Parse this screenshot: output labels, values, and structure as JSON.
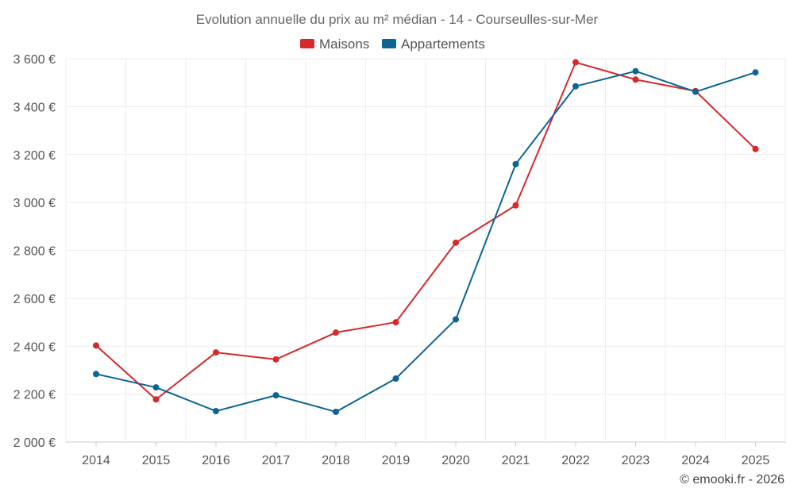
{
  "chart_data": {
    "type": "line",
    "title": "Evolution annuelle du prix au m² médian - 14 - Courseulles-sur-Mer",
    "categories": [
      "2014",
      "2015",
      "2016",
      "2017",
      "2018",
      "2019",
      "2020",
      "2021",
      "2022",
      "2023",
      "2024",
      "2025"
    ],
    "series": [
      {
        "name": "Maisons",
        "color": "#d42a2a",
        "values": [
          2403,
          2178,
          2374,
          2345,
          2457,
          2500,
          2832,
          2988,
          3585,
          3513,
          3465,
          3223
        ]
      },
      {
        "name": "Appartements",
        "color": "#0a6496",
        "values": [
          2284,
          2228,
          2129,
          2195,
          2126,
          2265,
          2512,
          3160,
          3485,
          3548,
          3462,
          3543
        ]
      }
    ],
    "ylim": [
      2000,
      3600
    ],
    "yticks": [
      2000,
      2200,
      2400,
      2600,
      2800,
      3000,
      3200,
      3400,
      3600
    ],
    "ytick_labels": [
      "2 000 €",
      "2 200 €",
      "2 400 €",
      "2 600 €",
      "2 800 €",
      "3 000 €",
      "3 200 €",
      "3 400 €",
      "3 600 €"
    ],
    "xlabel": "",
    "ylabel": "",
    "legend_position": "top-center",
    "grid": true
  },
  "credit": "© emooki.fr - 2026"
}
